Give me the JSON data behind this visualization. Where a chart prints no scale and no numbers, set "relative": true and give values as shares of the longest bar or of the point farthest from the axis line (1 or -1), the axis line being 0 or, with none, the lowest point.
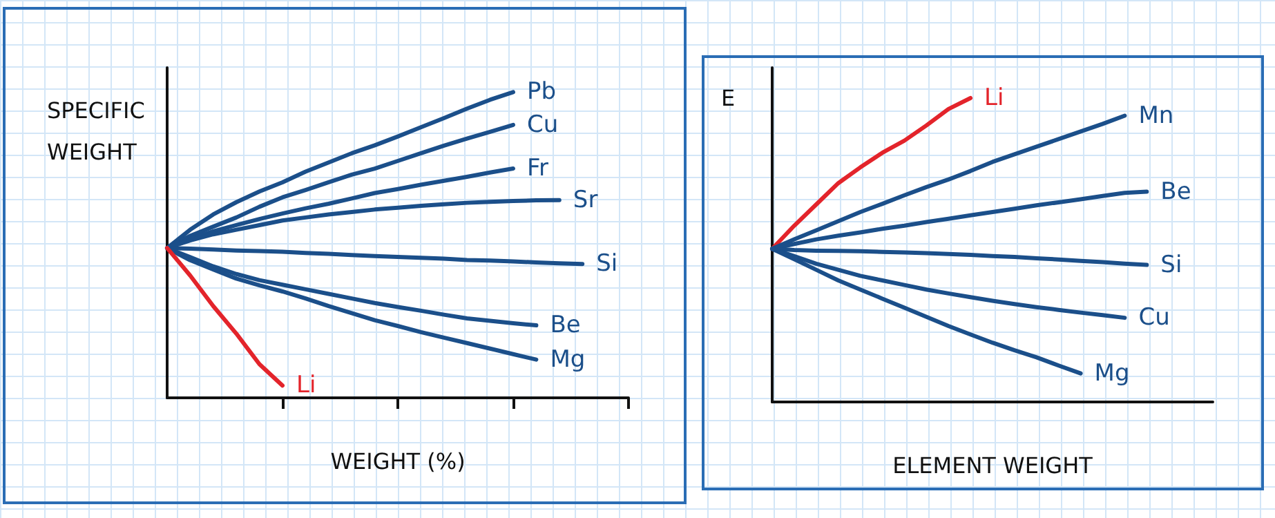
{
  "chart_data": [
    {
      "type": "line",
      "relative": true,
      "ylabel": "SPECIFIC WEIGHT",
      "xlabel": "WEIGHT (%)",
      "categories": [
        null,
        null,
        null,
        null,
        null,
        null,
        null,
        null,
        null,
        null,
        null,
        null,
        null,
        null,
        null,
        null,
        null,
        null,
        null,
        null,
        null
      ],
      "series": [
        {
          "name": "Pb",
          "color": "#1b4f8a",
          "values": [
            0.49,
            0.55,
            0.6,
            0.64,
            0.675,
            0.705,
            0.74,
            0.77,
            0.8,
            0.826,
            0.855,
            0.885,
            0.915,
            0.946,
            0.975,
            1.0,
            null,
            null,
            null,
            null,
            null
          ]
        },
        {
          "name": "Cu",
          "color": "#1b4f8a",
          "values": [
            0.49,
            0.53,
            0.56,
            0.59,
            0.625,
            0.656,
            0.68,
            0.705,
            0.73,
            0.75,
            0.775,
            0.8,
            0.825,
            0.848,
            0.87,
            0.893,
            null,
            null,
            null,
            null,
            null
          ]
        },
        {
          "name": "Fr",
          "color": "#1b4f8a",
          "values": [
            0.49,
            0.52,
            0.545,
            0.565,
            0.585,
            0.603,
            0.62,
            0.635,
            0.652,
            0.67,
            0.683,
            0.697,
            0.71,
            0.723,
            0.737,
            0.75,
            null,
            null,
            null,
            null,
            null
          ]
        },
        {
          "name": "Sr",
          "color": "#1b4f8a",
          "values": [
            0.49,
            0.515,
            0.535,
            0.55,
            0.565,
            0.58,
            0.59,
            0.6,
            0.608,
            0.616,
            0.622,
            0.628,
            0.633,
            0.638,
            0.641,
            0.644,
            0.646,
            0.647,
            null,
            null,
            null
          ]
        },
        {
          "name": "Si",
          "color": "#1b4f8a",
          "values": [
            0.49,
            0.488,
            0.485,
            0.482,
            0.48,
            0.478,
            0.474,
            0.471,
            0.467,
            0.464,
            0.461,
            0.458,
            0.455,
            0.451,
            0.449,
            0.446,
            0.443,
            0.44,
            0.438,
            null,
            null
          ]
        },
        {
          "name": "Be",
          "color": "#1b4f8a",
          "values": [
            0.49,
            0.46,
            0.43,
            0.405,
            0.385,
            0.37,
            0.355,
            0.34,
            0.325,
            0.31,
            0.297,
            0.285,
            0.272,
            0.26,
            0.252,
            0.244,
            0.237,
            null,
            null,
            null,
            null
          ]
        },
        {
          "name": "Mg",
          "color": "#1b4f8a",
          "values": [
            0.49,
            0.45,
            0.42,
            0.39,
            0.368,
            0.348,
            0.325,
            0.3,
            0.277,
            0.254,
            0.235,
            0.215,
            0.197,
            0.179,
            0.161,
            0.143,
            0.125,
            null,
            null,
            null,
            null
          ]
        },
        {
          "name": "Li",
          "color": "#e3242b",
          "values": [
            0.49,
            0.4,
            0.3,
            0.21,
            0.11,
            0.04,
            null,
            null,
            null,
            null,
            null,
            null,
            null,
            null,
            null,
            null,
            null,
            null,
            null,
            null,
            null
          ]
        }
      ]
    },
    {
      "type": "line",
      "relative": true,
      "ylabel": "E",
      "xlabel": "ELEMENT WEIGHT",
      "categories": [
        null,
        null,
        null,
        null,
        null,
        null,
        null,
        null,
        null,
        null,
        null,
        null,
        null,
        null,
        null,
        null,
        null,
        null,
        null,
        null,
        null
      ],
      "series": [
        {
          "name": "Li",
          "color": "#e3242b",
          "values": [
            0.504,
            0.58,
            0.65,
            0.72,
            0.772,
            0.82,
            0.86,
            0.91,
            0.964,
            1.0,
            null,
            null,
            null,
            null,
            null,
            null,
            null,
            null,
            null,
            null,
            null
          ]
        },
        {
          "name": "Mn",
          "color": "#1b4f8a",
          "values": [
            0.504,
            0.535,
            0.565,
            0.595,
            0.625,
            0.652,
            0.68,
            0.707,
            0.732,
            0.76,
            0.79,
            0.815,
            0.84,
            0.865,
            0.89,
            0.915,
            0.942,
            null,
            null,
            null,
            null
          ]
        },
        {
          "name": "Be",
          "color": "#1b4f8a",
          "values": [
            0.504,
            0.52,
            0.535,
            0.547,
            0.558,
            0.57,
            0.58,
            0.592,
            0.603,
            0.614,
            0.625,
            0.636,
            0.647,
            0.657,
            0.667,
            0.678,
            0.688,
            0.692,
            null,
            null,
            null
          ]
        },
        {
          "name": "Si",
          "color": "#1b4f8a",
          "values": [
            0.504,
            0.5,
            0.498,
            0.497,
            0.496,
            0.494,
            0.492,
            0.49,
            0.487,
            0.484,
            0.48,
            0.477,
            0.473,
            0.469,
            0.464,
            0.46,
            0.455,
            0.451,
            null,
            null,
            null
          ]
        },
        {
          "name": "Cu",
          "color": "#1b4f8a",
          "values": [
            0.504,
            0.48,
            0.455,
            0.435,
            0.415,
            0.4,
            0.385,
            0.37,
            0.357,
            0.345,
            0.333,
            0.322,
            0.312,
            0.303,
            0.294,
            0.286,
            0.277,
            null,
            null,
            null,
            null
          ]
        },
        {
          "name": "Mg",
          "color": "#1b4f8a",
          "values": [
            0.504,
            0.47,
            0.435,
            0.4,
            0.37,
            0.34,
            0.31,
            0.28,
            0.25,
            0.222,
            0.195,
            0.17,
            0.147,
            0.12,
            0.094,
            null,
            null,
            null,
            null,
            null,
            null
          ]
        }
      ]
    }
  ]
}
